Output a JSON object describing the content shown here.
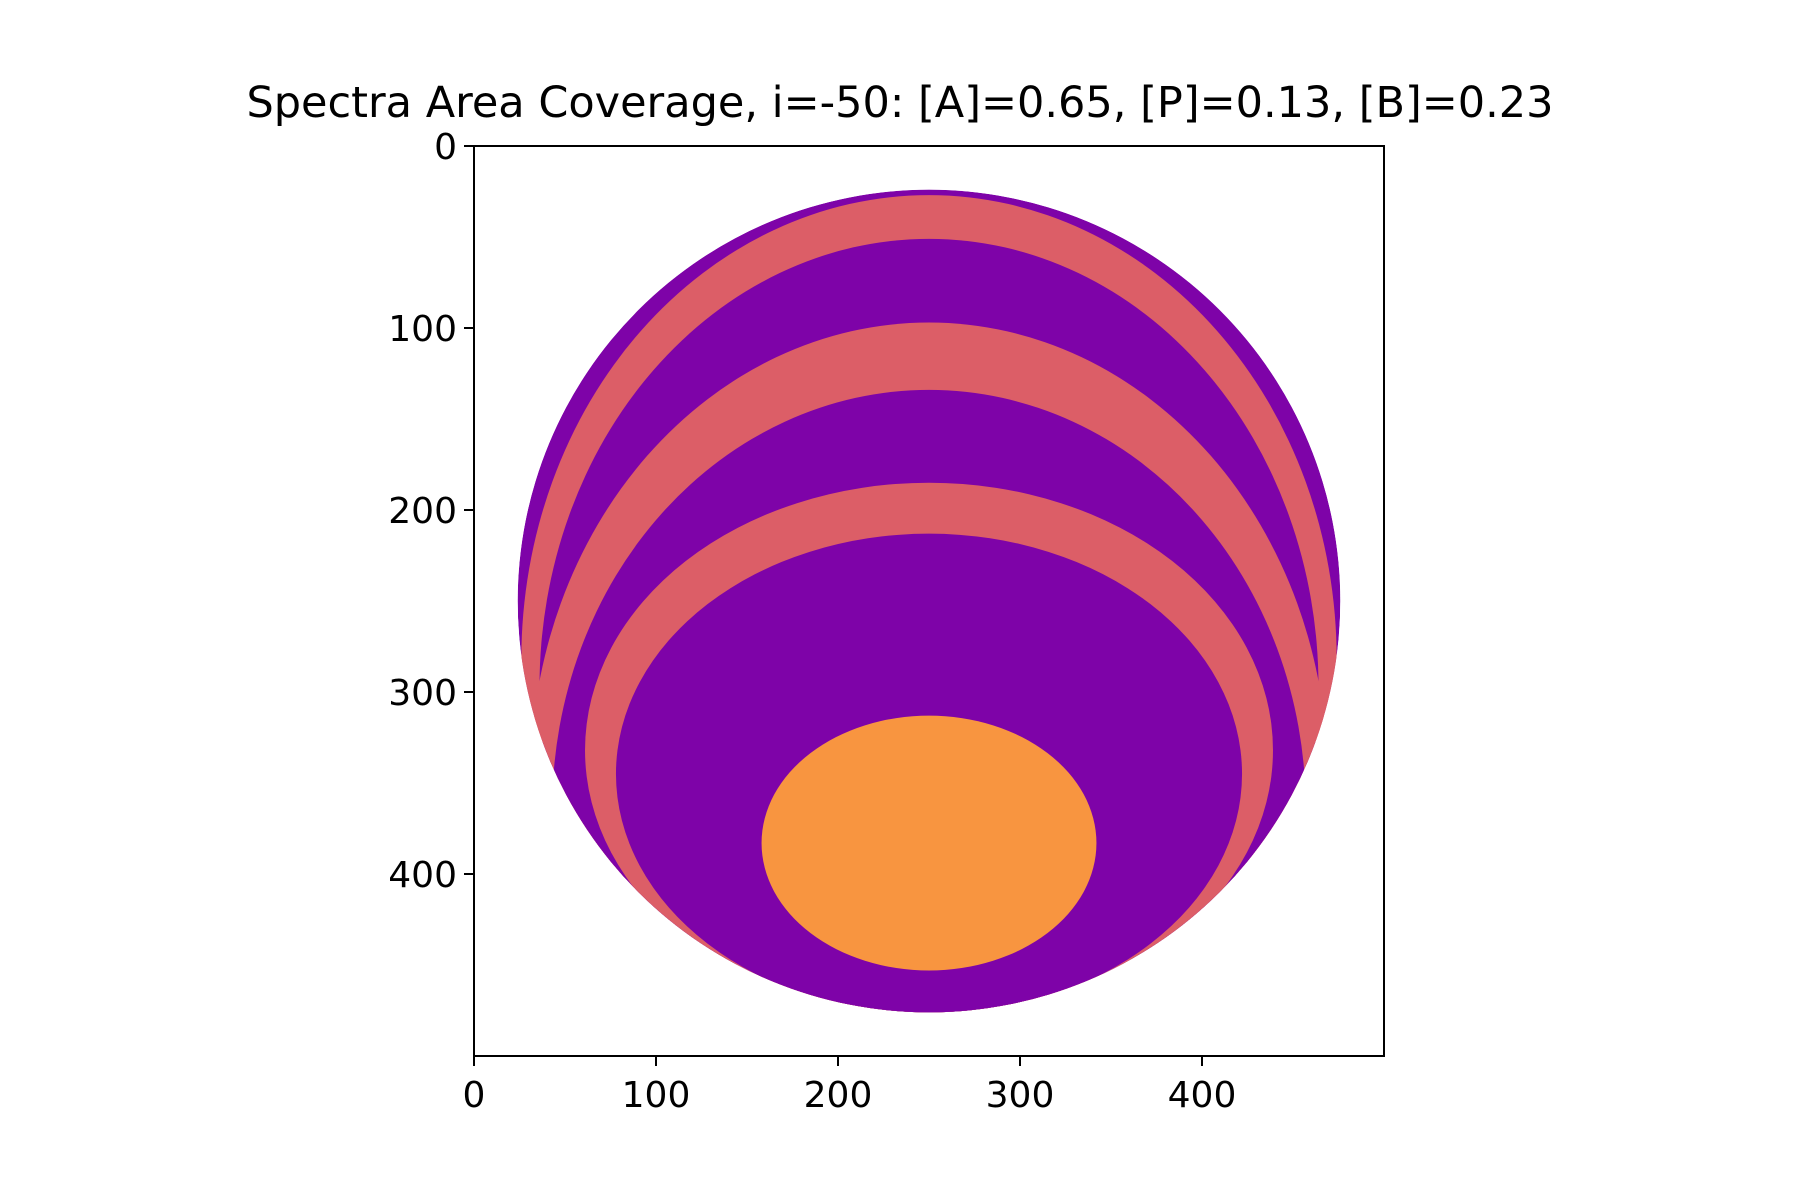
{
  "chart_data": {
    "type": "heatmap",
    "title": "Spectra Area Coverage, i=-50: [A]=0.65, [P]=0.13, [B]=0.23",
    "xlabel": "",
    "ylabel": "",
    "xlim": [
      0,
      500
    ],
    "ylim": [
      500,
      0
    ],
    "x_ticks": [
      0,
      100,
      200,
      300,
      400
    ],
    "y_ticks": [
      0,
      100,
      200,
      300,
      400
    ],
    "grid": false,
    "colormap": "plasma",
    "background_color": "#ffffff",
    "disk": {
      "center": [
        250,
        250
      ],
      "radius": 226,
      "color": "#7e03a8"
    },
    "regions": [
      {
        "label": "P",
        "shape": "ellipse",
        "center": [
          250,
          282
        ],
        "rx": 224,
        "ry": 255,
        "color": "#dc5e67"
      },
      {
        "label": "A",
        "shape": "ellipse",
        "center": [
          250,
          297
        ],
        "rx": 214,
        "ry": 246,
        "color": "#7e03a8"
      },
      {
        "label": "P",
        "shape": "ellipse",
        "center": [
          250,
          347
        ],
        "rx": 219,
        "ry": 250,
        "color": "#dc5e67"
      },
      {
        "label": "A",
        "shape": "ellipse",
        "center": [
          250,
          364
        ],
        "rx": 207,
        "ry": 230,
        "color": "#7e03a8"
      },
      {
        "label": "P",
        "shape": "ellipse",
        "center": [
          250,
          332
        ],
        "rx": 189,
        "ry": 147,
        "color": "#dc5e67"
      },
      {
        "label": "A",
        "shape": "ellipse",
        "center": [
          250,
          345
        ],
        "rx": 172,
        "ry": 132,
        "color": "#7e03a8"
      },
      {
        "label": "B",
        "shape": "ellipse",
        "center": [
          250,
          383
        ],
        "rx": 92,
        "ry": 70,
        "color": "#f89540"
      }
    ],
    "coverage": {
      "A": 0.65,
      "P": 0.13,
      "B": 0.23
    }
  }
}
